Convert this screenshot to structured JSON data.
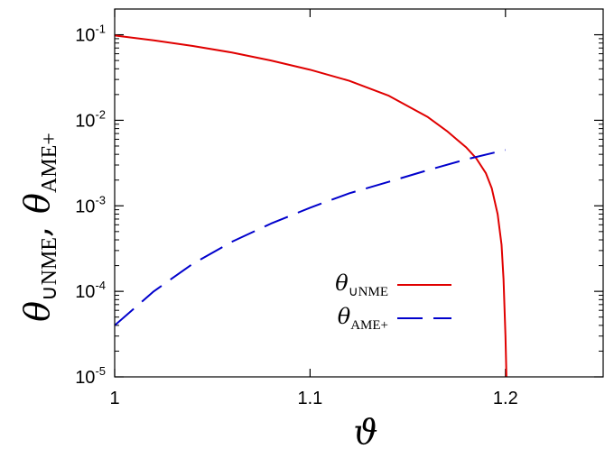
{
  "chart_data": {
    "type": "line",
    "xlabel": "ϑ",
    "ylabel": {
      "first_symbol": "θ",
      "first_sub": "∪NME",
      "separator": ",",
      "second_symbol": "θ",
      "second_sub": "AME+"
    },
    "xlim": [
      1.0,
      1.25
    ],
    "ylim": [
      1e-05,
      0.2
    ],
    "yscale": "log",
    "xticks": [
      {
        "value": 1.0,
        "label": "1"
      },
      {
        "value": 1.1,
        "label": "1.1"
      },
      {
        "value": 1.2,
        "label": "1.2"
      }
    ],
    "yticks": [
      {
        "value": 0.1,
        "base": "10",
        "exp": "-1"
      },
      {
        "value": 0.01,
        "base": "10",
        "exp": "-2"
      },
      {
        "value": 0.001,
        "base": "10",
        "exp": "-3"
      },
      {
        "value": 0.0001,
        "base": "10",
        "exp": "-4"
      },
      {
        "value": 1e-05,
        "base": "10",
        "exp": "-5"
      }
    ],
    "grid": false,
    "legend_position": "lower-center",
    "series": [
      {
        "symbol": "θ",
        "sub": "∪NME",
        "color": "#e00000",
        "dash": "solid",
        "x": [
          1.0,
          1.02,
          1.04,
          1.06,
          1.08,
          1.1,
          1.12,
          1.14,
          1.16,
          1.17,
          1.18,
          1.185,
          1.19,
          1.193,
          1.196,
          1.198,
          1.199,
          1.2,
          1.2005
        ],
        "y": [
          0.098,
          0.086,
          0.074,
          0.062,
          0.05,
          0.039,
          0.029,
          0.0195,
          0.011,
          0.0075,
          0.0048,
          0.0036,
          0.0024,
          0.0016,
          0.0008,
          0.00035,
          0.00014,
          3e-05,
          1e-05
        ]
      },
      {
        "symbol": "θ",
        "sub": "AME+",
        "color": "#0000cc",
        "dash": "dashed",
        "x": [
          1.0,
          1.02,
          1.04,
          1.06,
          1.08,
          1.1,
          1.12,
          1.14,
          1.16,
          1.18,
          1.2
        ],
        "y": [
          4e-05,
          0.0001,
          0.00021,
          0.00038,
          0.00062,
          0.00095,
          0.0014,
          0.0019,
          0.0026,
          0.0035,
          0.0045
        ]
      }
    ]
  }
}
